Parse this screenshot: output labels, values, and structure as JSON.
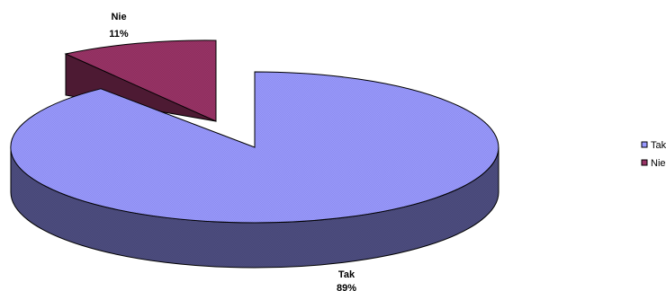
{
  "chart_data": {
    "type": "pie",
    "style": "3d-exploded",
    "categories": [
      "Tak",
      "Nie"
    ],
    "values": [
      89,
      11
    ],
    "labels": [
      "89%",
      "11%"
    ],
    "colors": [
      "#9999ff",
      "#993366"
    ],
    "legend": "right",
    "title": ""
  }
}
